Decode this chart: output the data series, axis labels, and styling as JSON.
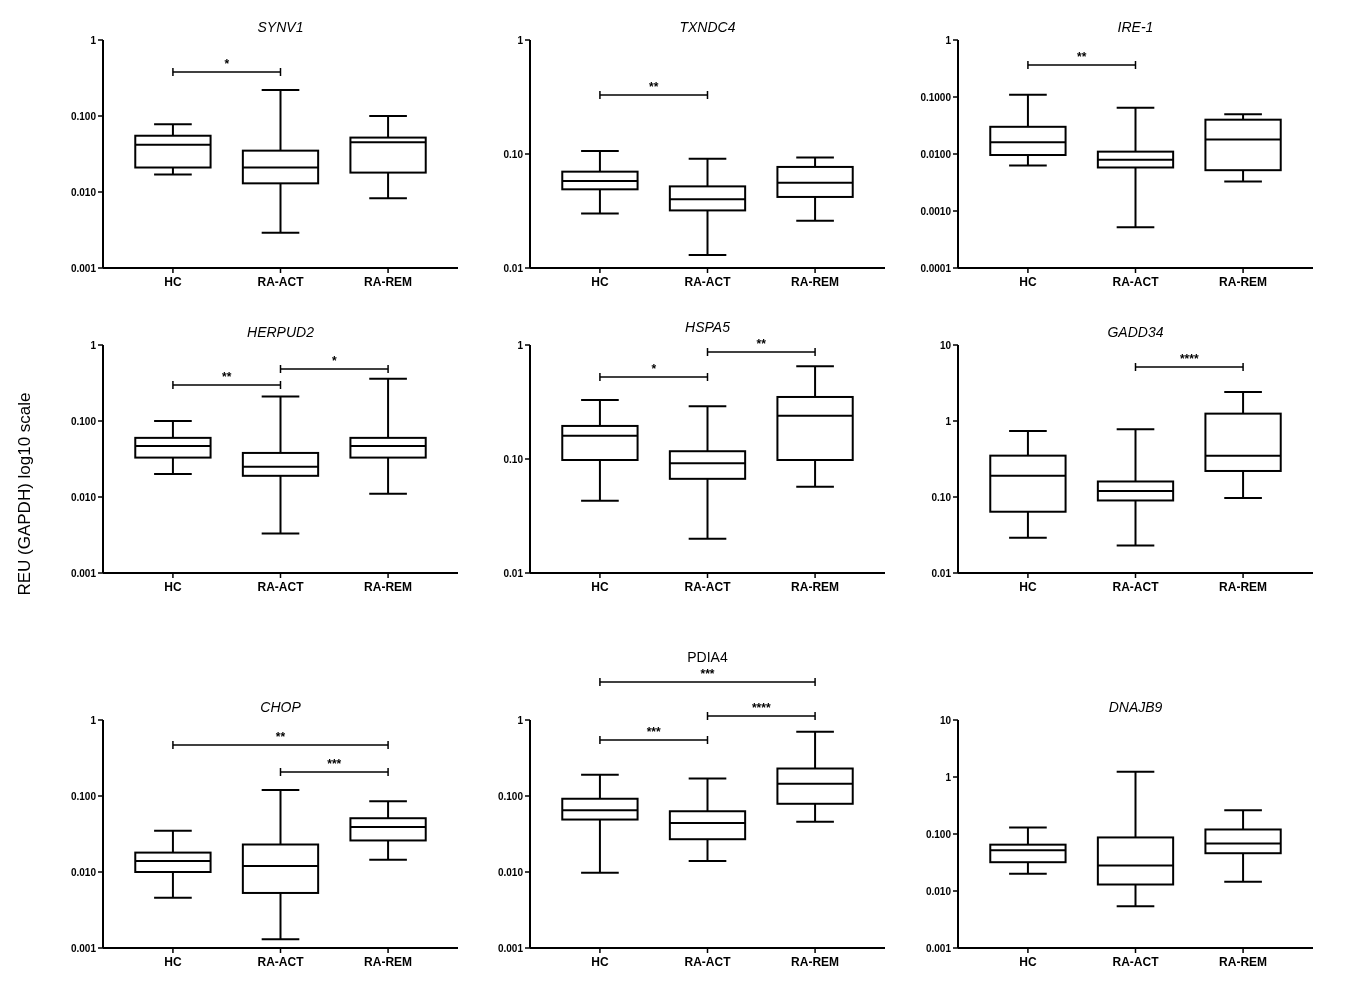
{
  "chart_data": [
    {
      "type": "box",
      "title": "SYNV1",
      "categories": [
        "HC",
        "RA-ACT",
        "RA-REM"
      ],
      "color": "#000000",
      "log": true,
      "ylim": [
        0.001,
        1
      ],
      "yticks": [
        1,
        {
          "value": 0.1,
          "label": "0.100"
        },
        {
          "value": 0.01,
          "label": "0.010"
        },
        0.001
      ],
      "annotations": [
        "*"
      ],
      "boxes": [
        {
          "low": 0.017,
          "q1": 0.021,
          "median": 0.042,
          "q3": 0.055,
          "high": 0.078
        },
        {
          "low": 0.0029,
          "q1": 0.013,
          "median": 0.021,
          "q3": 0.035,
          "high": 0.22
        },
        {
          "low": 0.0083,
          "q1": 0.018,
          "median": 0.045,
          "q3": 0.052,
          "high": 0.1
        }
      ]
    },
    {
      "type": "box",
      "title": "TXNDC4",
      "categories": [
        "HC",
        "RA-ACT",
        "RA-REM"
      ],
      "color": "#000000",
      "log": true,
      "ylim": [
        0.01,
        1
      ],
      "yticks": [
        1,
        {
          "value": 0.1,
          "label": "0.10"
        },
        0.01
      ],
      "annotations": [
        "**"
      ],
      "boxes": [
        {
          "low": 0.03,
          "q1": 0.049,
          "median": 0.058,
          "q3": 0.07,
          "high": 0.106
        },
        {
          "low": 0.013,
          "q1": 0.032,
          "median": 0.04,
          "q3": 0.052,
          "high": 0.091
        },
        {
          "low": 0.026,
          "q1": 0.042,
          "median": 0.056,
          "q3": 0.077,
          "high": 0.093
        }
      ]
    },
    {
      "type": "box",
      "title": "IRE-1",
      "categories": [
        "HC",
        "RA-ACT",
        "RA-REM"
      ],
      "color": "#000000",
      "log": true,
      "ylim": [
        0.0001,
        1
      ],
      "yticks": [
        1,
        {
          "value": 0.1,
          "label": "0.1000"
        },
        {
          "value": 0.01,
          "label": "0.0100"
        },
        {
          "value": 0.001,
          "label": "0.0010"
        },
        0.0001
      ],
      "annotations": [
        "**"
      ],
      "boxes": [
        {
          "low": 0.0063,
          "q1": 0.0096,
          "median": 0.016,
          "q3": 0.03,
          "high": 0.11
        },
        {
          "low": 0.00052,
          "q1": 0.0058,
          "median": 0.0079,
          "q3": 0.011,
          "high": 0.065
        },
        {
          "low": 0.0033,
          "q1": 0.0052,
          "median": 0.018,
          "q3": 0.04,
          "high": 0.05
        }
      ]
    },
    {
      "type": "box",
      "title": "HERPUD2",
      "ylabel": "REU (GAPDH) log10 scale",
      "categories": [
        "HC",
        "RA-ACT",
        "RA-REM"
      ],
      "color": "#000000",
      "log": true,
      "ylim": [
        0.001,
        1
      ],
      "yticks": [
        1,
        {
          "value": 0.1,
          "label": "0.100"
        },
        {
          "value": 0.01,
          "label": "0.010"
        },
        0.001
      ],
      "annotations": [
        "**",
        "*"
      ],
      "boxes": [
        {
          "low": 0.02,
          "q1": 0.033,
          "median": 0.047,
          "q3": 0.06,
          "high": 0.1
        },
        {
          "low": 0.0033,
          "q1": 0.019,
          "median": 0.025,
          "q3": 0.038,
          "high": 0.21
        },
        {
          "low": 0.011,
          "q1": 0.033,
          "median": 0.047,
          "q3": 0.06,
          "high": 0.36
        }
      ]
    },
    {
      "type": "box",
      "title": "HSPA5",
      "categories": [
        "HC",
        "RA-ACT",
        "RA-REM"
      ],
      "color": "#000000",
      "log": true,
      "ylim": [
        0.01,
        1
      ],
      "yticks": [
        1,
        {
          "value": 0.1,
          "label": "0.10"
        },
        0.01
      ],
      "annotations": [
        "*",
        "**"
      ],
      "boxes": [
        {
          "low": 0.043,
          "q1": 0.098,
          "median": 0.16,
          "q3": 0.195,
          "high": 0.33
        },
        {
          "low": 0.02,
          "q1": 0.067,
          "median": 0.092,
          "q3": 0.117,
          "high": 0.29
        },
        {
          "low": 0.057,
          "q1": 0.098,
          "median": 0.24,
          "q3": 0.35,
          "high": 0.65
        }
      ]
    },
    {
      "type": "box",
      "title": "GADD34",
      "categories": [
        "HC",
        "RA-ACT",
        "RA-REM"
      ],
      "color": "#000000",
      "log": true,
      "ylim": [
        0.01,
        10
      ],
      "yticks": [
        10,
        1,
        {
          "value": 0.1,
          "label": "0.10"
        },
        0.01
      ],
      "annotations": [
        "****"
      ],
      "boxes": [
        {
          "low": 0.029,
          "q1": 0.064,
          "median": 0.19,
          "q3": 0.35,
          "high": 0.74
        },
        {
          "low": 0.023,
          "q1": 0.09,
          "median": 0.12,
          "q3": 0.16,
          "high": 0.78
        },
        {
          "low": 0.097,
          "q1": 0.22,
          "median": 0.35,
          "q3": 1.25,
          "high": 2.4
        }
      ]
    },
    {
      "type": "box",
      "title": "CHOP",
      "categories": [
        "HC",
        "RA-ACT",
        "RA-REM"
      ],
      "color": "#000000",
      "log": true,
      "ylim": [
        0.001,
        1
      ],
      "yticks": [
        1,
        {
          "value": 0.1,
          "label": "0.100"
        },
        {
          "value": 0.01,
          "label": "0.010"
        },
        0.001
      ],
      "annotations": [
        "**",
        "***"
      ],
      "boxes": [
        {
          "low": 0.0046,
          "q1": 0.01,
          "median": 0.014,
          "q3": 0.018,
          "high": 0.035
        },
        {
          "low": 0.0013,
          "q1": 0.0053,
          "median": 0.012,
          "q3": 0.023,
          "high": 0.12
        },
        {
          "low": 0.0145,
          "q1": 0.026,
          "median": 0.039,
          "q3": 0.051,
          "high": 0.085
        }
      ]
    },
    {
      "type": "box",
      "title": "PDIA4",
      "categories": [
        "HC",
        "RA-ACT",
        "RA-REM"
      ],
      "color": "#000000",
      "log": true,
      "ylim": [
        0.001,
        1
      ],
      "yticks": [
        1,
        {
          "value": 0.1,
          "label": "0.100"
        },
        {
          "value": 0.01,
          "label": "0.010"
        },
        0.001
      ],
      "annotations": [
        "***",
        "***",
        "****"
      ],
      "boxes": [
        {
          "low": 0.0098,
          "q1": 0.049,
          "median": 0.065,
          "q3": 0.092,
          "high": 0.19
        },
        {
          "low": 0.014,
          "q1": 0.027,
          "median": 0.044,
          "q3": 0.063,
          "high": 0.17
        },
        {
          "low": 0.046,
          "q1": 0.079,
          "median": 0.145,
          "q3": 0.23,
          "high": 0.7
        }
      ]
    },
    {
      "type": "box",
      "title": "DNAJB9",
      "categories": [
        "HC",
        "RA-ACT",
        "RA-REM"
      ],
      "color": "#000000",
      "log": true,
      "ylim": [
        0.001,
        10
      ],
      "yticks": [
        10,
        1,
        {
          "value": 0.1,
          "label": "0.100"
        },
        {
          "value": 0.01,
          "label": "0.010"
        },
        0.001
      ],
      "boxes": [
        {
          "low": 0.02,
          "q1": 0.032,
          "median": 0.052,
          "q3": 0.065,
          "high": 0.13
        },
        {
          "low": 0.0054,
          "q1": 0.013,
          "median": 0.028,
          "q3": 0.087,
          "high": 1.24
        },
        {
          "low": 0.0145,
          "q1": 0.046,
          "median": 0.068,
          "q3": 0.12,
          "high": 0.26
        }
      ]
    }
  ]
}
